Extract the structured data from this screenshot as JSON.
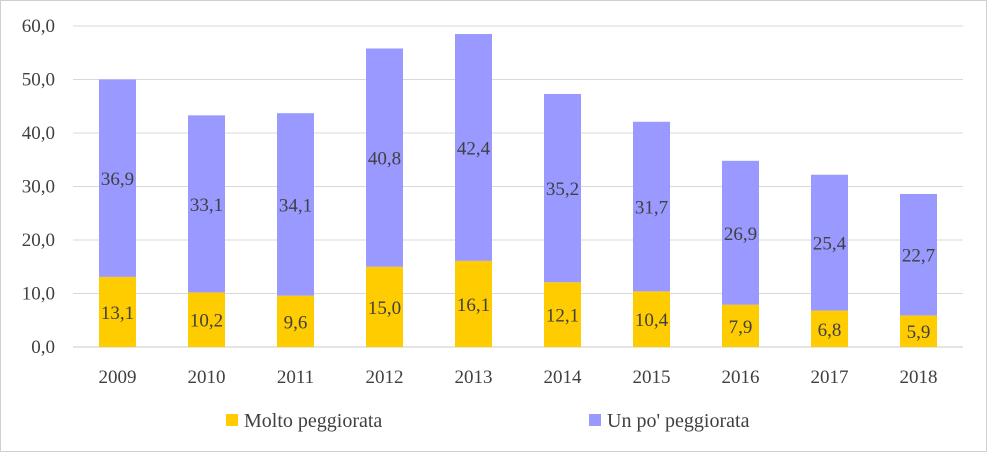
{
  "chart_data": {
    "type": "bar",
    "stacked": true,
    "title": "",
    "xlabel": "",
    "ylabel": "",
    "categories": [
      "2009",
      "2010",
      "2011",
      "2012",
      "2013",
      "2014",
      "2015",
      "2016",
      "2017",
      "2018"
    ],
    "series": [
      {
        "name": "Molto peggiorata",
        "color": "#ffcc00",
        "values": [
          13.1,
          10.2,
          9.6,
          15.0,
          16.1,
          12.1,
          10.4,
          7.9,
          6.8,
          5.9
        ],
        "labels": [
          "13,1",
          "10,2",
          "9,6",
          "15,0",
          "16,1",
          "12,1",
          "10,4",
          "7,9",
          "6,8",
          "5,9"
        ]
      },
      {
        "name": "Un po' peggiorata",
        "color": "#9999ff",
        "values": [
          36.9,
          33.1,
          34.1,
          40.8,
          42.4,
          35.2,
          31.7,
          26.9,
          25.4,
          22.7
        ],
        "labels": [
          "36,9",
          "33,1",
          "34,1",
          "40,8",
          "42,4",
          "35,2",
          "31,7",
          "26,9",
          "25,4",
          "22,7"
        ]
      }
    ],
    "ylim": [
      0,
      60
    ],
    "yticks": [
      0,
      10,
      20,
      30,
      40,
      50,
      60
    ],
    "ytick_labels": [
      "0,0",
      "10,0",
      "20,0",
      "30,0",
      "40,0",
      "50,0",
      "60,0"
    ],
    "grid": true,
    "legend_position": "bottom"
  }
}
